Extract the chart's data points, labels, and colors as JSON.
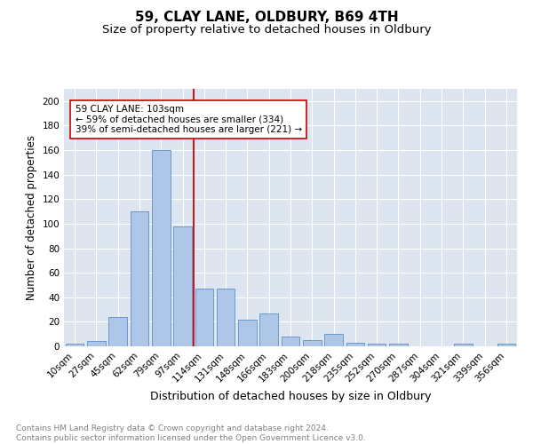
{
  "title": "59, CLAY LANE, OLDBURY, B69 4TH",
  "subtitle": "Size of property relative to detached houses in Oldbury",
  "xlabel": "Distribution of detached houses by size in Oldbury",
  "ylabel": "Number of detached properties",
  "categories": [
    "10sqm",
    "27sqm",
    "45sqm",
    "62sqm",
    "79sqm",
    "97sqm",
    "114sqm",
    "131sqm",
    "148sqm",
    "166sqm",
    "183sqm",
    "200sqm",
    "218sqm",
    "235sqm",
    "252sqm",
    "270sqm",
    "287sqm",
    "304sqm",
    "321sqm",
    "339sqm",
    "356sqm"
  ],
  "values": [
    2,
    4,
    24,
    110,
    160,
    98,
    47,
    47,
    22,
    27,
    8,
    5,
    10,
    3,
    2,
    2,
    0,
    0,
    2,
    0,
    2
  ],
  "bar_color": "#aec6e8",
  "bar_edge_color": "#5b8fc9",
  "vline_x": 5.5,
  "vline_color": "#cc0000",
  "annotation_text": "59 CLAY LANE: 103sqm\n← 59% of detached houses are smaller (334)\n39% of semi-detached houses are larger (221) →",
  "annotation_box_color": "#ffffff",
  "annotation_box_edge": "#cc0000",
  "ylim": [
    0,
    210
  ],
  "yticks": [
    0,
    20,
    40,
    60,
    80,
    100,
    120,
    140,
    160,
    180,
    200
  ],
  "background_color": "#dde5f0",
  "footer_text": "Contains HM Land Registry data © Crown copyright and database right 2024.\nContains public sector information licensed under the Open Government Licence v3.0.",
  "title_fontsize": 11,
  "subtitle_fontsize": 9.5,
  "xlabel_fontsize": 9,
  "ylabel_fontsize": 8.5,
  "tick_fontsize": 7.5,
  "footer_fontsize": 6.5,
  "ann_fontsize": 7.5
}
